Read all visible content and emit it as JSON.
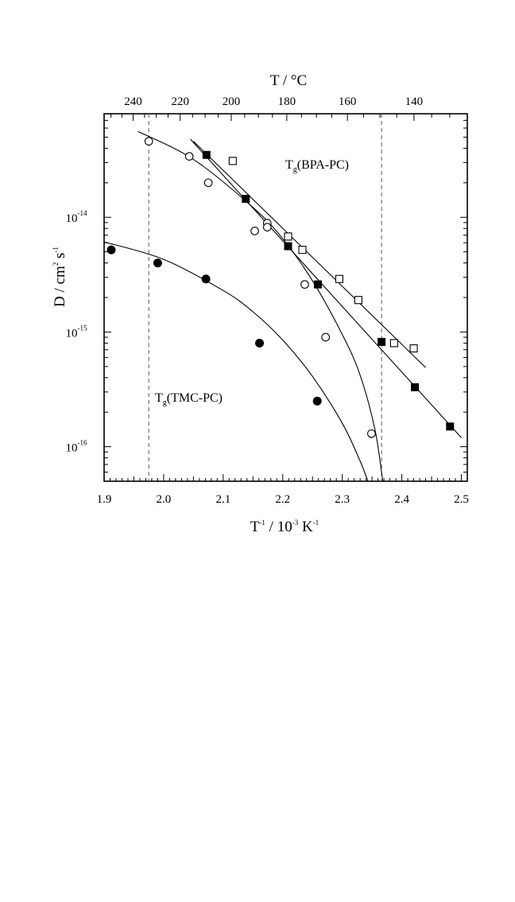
{
  "chart_data": {
    "type": "scatter",
    "x_axis": {
      "label_main": "T",
      "label_sup1": "-1",
      "label_mid": " / 10",
      "label_sup2": "-3",
      "label_unit": " K",
      "label_sup3": "-1",
      "range": [
        1.9,
        2.51
      ],
      "ticks": [
        1.9,
        2.0,
        2.1,
        2.2,
        2.3,
        2.4,
        2.5
      ],
      "tick_labels": [
        "1.9",
        "2.0",
        "2.1",
        "2.2",
        "2.3",
        "2.4",
        "2.5"
      ]
    },
    "top_axis": {
      "label": "T / °C",
      "ticks": [
        240,
        220,
        200,
        180,
        160,
        140
      ],
      "tick_labels": [
        "240",
        "220",
        "200",
        "180",
        "160",
        "140"
      ]
    },
    "y_axis": {
      "label_main": "D / cm",
      "label_sup1": "2",
      "label_mid": " s",
      "label_sup2": "-1",
      "scale": "log",
      "range": [
        5e-17,
        8e-14
      ],
      "ticks": [
        1e-16,
        1e-15,
        1e-14
      ],
      "tick_base": [
        "10",
        "10",
        "10"
      ],
      "tick_exp": [
        "-16",
        "-15",
        "-14"
      ]
    },
    "annotations": {
      "bpa": {
        "main": "T",
        "sub": "g",
        "rest": "(BPA-PC)"
      },
      "tmc": {
        "main": "T",
        "sub": "g",
        "rest": "(TMC-PC)"
      }
    },
    "vlines_x": [
      1.975,
      2.366
    ],
    "series": [
      {
        "marker": "open-square",
        "points": [
          [
            2.116,
            3.1e-14
          ],
          [
            2.209,
            6.8e-15
          ],
          [
            2.233,
            5.2e-15
          ],
          [
            2.295,
            2.9e-15
          ],
          [
            2.327,
            1.9e-15
          ],
          [
            2.387,
            8e-16
          ],
          [
            2.42,
            7.2e-16
          ]
        ],
        "fit": [
          [
            2.05,
            4.6e-14
          ],
          [
            2.44,
            4.9e-16
          ]
        ]
      },
      {
        "marker": "filled-square",
        "points": [
          [
            2.072,
            3.5e-14
          ],
          [
            2.138,
            1.45e-14
          ],
          [
            2.209,
            5.6e-15
          ],
          [
            2.259,
            2.6e-15
          ],
          [
            2.366,
            8.2e-16
          ],
          [
            2.422,
            3.3e-16
          ],
          [
            2.481,
            1.5e-16
          ]
        ],
        "fit": [
          [
            2.045,
            4.8e-14
          ],
          [
            2.5,
            1.2e-16
          ]
        ]
      },
      {
        "marker": "open-circle",
        "points": [
          [
            1.975,
            4.6e-14
          ],
          [
            2.043,
            3.4e-14
          ],
          [
            2.075,
            2e-14
          ],
          [
            2.153,
            7.6e-15
          ],
          [
            2.174,
            8.9e-15
          ],
          [
            2.174,
            8.2e-15
          ],
          [
            2.237,
            2.6e-15
          ],
          [
            2.272,
            9e-16
          ],
          [
            2.349,
            1.3e-16
          ]
        ],
        "fit": [
          [
            1.957,
            5.6e-14
          ],
          [
            2.05,
            3.2e-14
          ],
          [
            2.15,
            1.22e-14
          ],
          [
            2.2,
            6.5e-15
          ],
          [
            2.25,
            2.8e-15
          ],
          [
            2.3,
            9.5e-16
          ],
          [
            2.33,
            4.2e-16
          ],
          [
            2.355,
            1.4e-16
          ],
          [
            2.368,
            5e-17
          ]
        ]
      },
      {
        "marker": "filled-circle",
        "points": [
          [
            1.912,
            5.2e-15
          ],
          [
            1.99,
            4e-15
          ],
          [
            2.071,
            2.9e-15
          ],
          [
            2.161,
            8e-16
          ],
          [
            2.258,
            2.5e-16
          ]
        ],
        "fit": [
          [
            1.9,
            6.1e-15
          ],
          [
            2.0,
            4.3e-15
          ],
          [
            2.1,
            2.3e-15
          ],
          [
            2.15,
            1.5e-15
          ],
          [
            2.2,
            8.5e-16
          ],
          [
            2.25,
            4.1e-16
          ],
          [
            2.3,
            1.6e-16
          ],
          [
            2.33,
            7.5e-17
          ],
          [
            2.343,
            5e-17
          ]
        ]
      }
    ]
  }
}
